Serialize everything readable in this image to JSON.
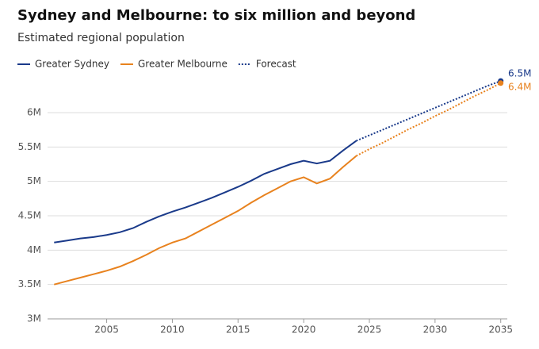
{
  "chart_data": {
    "type": "line",
    "title": "Sydney and Melbourne: to six million and beyond",
    "subtitle": "Estimated regional population",
    "forecast_label": "Forecast",
    "x": [
      2001,
      2002,
      2003,
      2004,
      2005,
      2006,
      2007,
      2008,
      2009,
      2010,
      2011,
      2012,
      2013,
      2014,
      2015,
      2016,
      2017,
      2018,
      2019,
      2020,
      2021,
      2022,
      2023,
      2024,
      2025,
      2026,
      2027,
      2028,
      2029,
      2030,
      2031,
      2032,
      2033,
      2034,
      2035
    ],
    "series": [
      {
        "name": "Greater Sydney",
        "color": "#1a3a8a",
        "end_label": "6.5M",
        "values": [
          4.11,
          4.14,
          4.17,
          4.19,
          4.22,
          4.26,
          4.32,
          4.41,
          4.49,
          4.56,
          4.62,
          4.69,
          4.76,
          4.84,
          4.92,
          5.01,
          5.11,
          5.18,
          5.25,
          5.3,
          5.26,
          5.3,
          5.45,
          5.59,
          null,
          null,
          null,
          null,
          null,
          null,
          null,
          null,
          null,
          null,
          null
        ],
        "forecast": [
          null,
          null,
          null,
          null,
          null,
          null,
          null,
          null,
          null,
          null,
          null,
          null,
          null,
          null,
          null,
          null,
          null,
          null,
          null,
          null,
          null,
          null,
          null,
          5.59,
          5.67,
          5.75,
          5.83,
          5.91,
          5.99,
          6.07,
          6.15,
          6.23,
          6.31,
          6.39,
          6.46
        ]
      },
      {
        "name": "Greater Melbourne",
        "color": "#e8821e",
        "end_label": "6.4M",
        "values": [
          3.5,
          3.55,
          3.6,
          3.65,
          3.7,
          3.76,
          3.84,
          3.93,
          4.03,
          4.11,
          4.17,
          4.27,
          4.37,
          4.47,
          4.57,
          4.69,
          4.8,
          4.9,
          5.0,
          5.06,
          4.97,
          5.04,
          5.21,
          5.37,
          null,
          null,
          null,
          null,
          null,
          null,
          null,
          null,
          null,
          null,
          null
        ],
        "forecast": [
          null,
          null,
          null,
          null,
          null,
          null,
          null,
          null,
          null,
          null,
          null,
          null,
          null,
          null,
          null,
          null,
          null,
          null,
          null,
          null,
          null,
          null,
          null,
          5.37,
          5.47,
          5.56,
          5.66,
          5.76,
          5.85,
          5.95,
          6.04,
          6.14,
          6.24,
          6.33,
          6.43
        ]
      }
    ],
    "xlim": [
      2000.5,
      2035.5
    ],
    "xticks": [
      2005,
      2010,
      2015,
      2020,
      2025,
      2030,
      2035
    ],
    "ylim": [
      3,
      6.6
    ],
    "yticks": [
      {
        "value": 3,
        "label": "3M"
      },
      {
        "value": 3.5,
        "label": "3.5M"
      },
      {
        "value": 4,
        "label": "4M"
      },
      {
        "value": 4.5,
        "label": "4.5M"
      },
      {
        "value": 5,
        "label": "5M"
      },
      {
        "value": 5.5,
        "label": "5.5M"
      },
      {
        "value": 6,
        "label": "6M"
      }
    ],
    "grid": true
  }
}
